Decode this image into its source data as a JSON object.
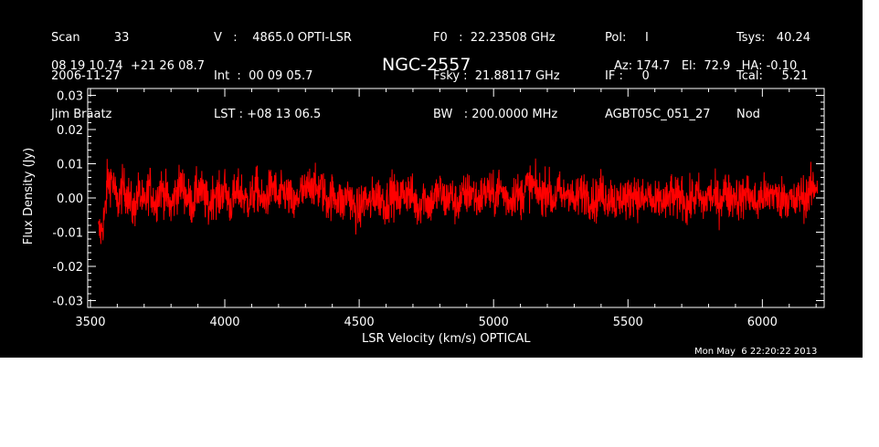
{
  "header": {
    "col1": [
      "Scan         33",
      "2006-11-27",
      "Jim Braatz"
    ],
    "col2": [
      "V   :    4865.0 OPTI-LSR",
      "Int  :  00 09 05.7",
      "LST : +08 13 06.5"
    ],
    "col3": [
      "F0   :  22.23508 GHz",
      "Fsky :  21.88117 GHz",
      "BW   : 200.0000 MHz"
    ],
    "col4": [
      "Pol:     I",
      "IF :     0",
      "AGBT05C_051_27"
    ],
    "col5": [
      "Tsys:   40.24",
      "Tcal:     5.21",
      "Nod"
    ],
    "coords": "08 19 10.74  +21 26 08.7",
    "azel": "Az: 174.7   El:  72.9   HA: -0.10"
  },
  "timestamp": "Mon May  6 22:20:22 2013",
  "colors": {
    "background": "#000000",
    "axes": "#ffffff",
    "spectrum": "#ff0000"
  },
  "chart_data": {
    "type": "line",
    "title": "NGC-2557",
    "xlabel": "LSR Velocity (km/s) OPTICAL",
    "ylabel": "Flux Density (Jy)",
    "xlim": [
      3490,
      6230
    ],
    "ylim": [
      -0.032,
      0.032
    ],
    "x_ticks": [
      3500,
      4000,
      4500,
      5000,
      5500,
      6000
    ],
    "x_tick_labels": [
      "3500",
      "4000",
      "4500",
      "5000",
      "5500",
      "6000"
    ],
    "y_ticks": [
      -0.03,
      -0.02,
      -0.01,
      0.0,
      0.01,
      0.02,
      0.03
    ],
    "y_tick_labels": [
      "-0.03",
      "-0.02",
      "-0.01",
      "0.00",
      "0.01",
      "0.02",
      "0.03"
    ],
    "series": [
      {
        "color": "#ff0000",
        "x": [
          3540,
          3560,
          3580,
          3600,
          3620,
          3640,
          3660,
          3680,
          3700,
          3720,
          3740,
          3760,
          3780,
          3800,
          3820,
          3840,
          3860,
          3880,
          3900,
          3920,
          3940,
          3960,
          3980,
          4000,
          4020,
          4040,
          4060,
          4080,
          4100,
          4120,
          4140,
          4160,
          4180,
          4200,
          4220,
          4240,
          4260,
          4280,
          4300,
          4320,
          4340,
          4360,
          4380,
          4400,
          4420,
          4440,
          4460,
          4480,
          4500,
          4520,
          4540,
          4560,
          4580,
          4600,
          4620,
          4640,
          4660,
          4680,
          4700,
          4720,
          4740,
          4760,
          4780,
          4800,
          4820,
          4840,
          4860,
          4880,
          4900,
          4920,
          4940,
          4960,
          4980,
          5000,
          5020,
          5040,
          5060,
          5080,
          5100,
          5120,
          5140,
          5160,
          5180,
          5200,
          5220,
          5240,
          5260,
          5280,
          5300,
          5320,
          5340,
          5360,
          5380,
          5400,
          5420,
          5440,
          5460,
          5480,
          5500,
          5520,
          5540,
          5560,
          5580,
          5600,
          5620,
          5640,
          5660,
          5680,
          5700,
          5720,
          5740,
          5760,
          5780,
          5800,
          5820,
          5840,
          5860,
          5880,
          5900,
          5920,
          5940,
          5960,
          5980,
          6000,
          6020,
          6040,
          6060,
          6080,
          6100,
          6120,
          6140,
          6160,
          6180,
          6200
        ],
        "y": [
          -0.004,
          0.004,
          0.006,
          -0.002,
          0.003,
          0.001,
          -0.004,
          0.002,
          -0.003,
          0.004,
          -0.002,
          0.003,
          0.001,
          -0.003,
          0.002,
          0.004,
          0.0,
          -0.002,
          0.003,
          0.001,
          -0.003,
          0.002,
          0.0,
          0.003,
          -0.002,
          0.001,
          0.002,
          -0.001,
          0.0,
          0.003,
          -0.002,
          0.001,
          0.004,
          -0.001,
          0.002,
          0.0,
          -0.003,
          0.002,
          0.001,
          0.005,
          0.002,
          0.003,
          -0.001,
          0.001,
          0.0,
          -0.002,
          0.002,
          -0.003,
          -0.004,
          0.0,
          -0.002,
          0.001,
          0.0,
          -0.002,
          0.002,
          -0.001,
          0.001,
          0.002,
          0.0,
          -0.003,
          0.001,
          -0.002,
          0.0,
          0.002,
          -0.001,
          0.001,
          -0.002,
          0.0,
          0.001,
          0.002,
          -0.001,
          0.001,
          0.002,
          0.0,
          0.003,
          0.001,
          -0.001,
          0.002,
          0.0,
          0.003,
          0.004,
          0.002,
          0.001,
          0.003,
          -0.001,
          0.002,
          0.0,
          0.003,
          -0.002,
          0.001,
          0.002,
          0.0,
          -0.001,
          0.002,
          0.0,
          0.001,
          -0.002,
          0.001,
          -0.001,
          0.002,
          0.0,
          -0.001,
          0.001,
          -0.003,
          0.0,
          -0.002,
          0.001,
          -0.001,
          0.002,
          -0.003,
          0.0,
          0.001,
          -0.002,
          0.001,
          0.0,
          -0.001,
          0.002,
          0.0,
          0.001,
          -0.001,
          0.002,
          0.0,
          -0.002,
          0.001,
          0.0,
          0.002,
          -0.001,
          0.001,
          0.0,
          -0.002,
          0.001,
          0.0,
          0.002,
          0.004
        ],
        "noise_rms": 0.0045
      }
    ],
    "grid": false,
    "legend": "none"
  }
}
